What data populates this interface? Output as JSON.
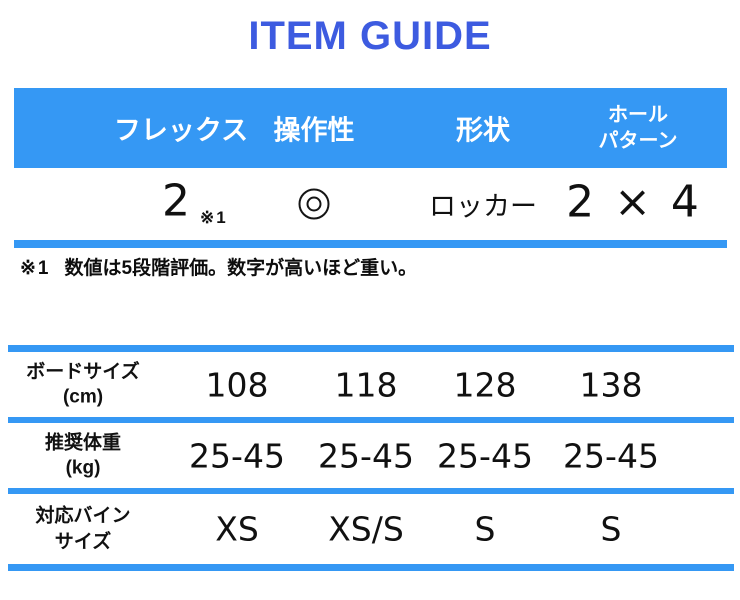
{
  "header": {
    "title": "ITEM GUIDE"
  },
  "colors": {
    "accent_blue": "#3598f4",
    "title_blue": "#3d5be0",
    "text_black": "#111111",
    "header_text_white": "#ffffff"
  },
  "spec": {
    "columns": [
      {
        "label": "フレックス"
      },
      {
        "label": "操作性"
      },
      {
        "label": "形状"
      },
      {
        "label_line1": "ホール",
        "label_line2": "パターン"
      }
    ],
    "values": {
      "flex": "2",
      "flex_note_ref": "※1",
      "operability_icon": "double-circle",
      "shape": "ロッカー",
      "hole_pattern": "2 × 4"
    }
  },
  "note": {
    "marker": "※1",
    "text": "数値は5段階評価。数字が高いほど重い。"
  },
  "size_table": {
    "rows": [
      {
        "label_line1": "ボードサイズ",
        "label_line2": "(cm)",
        "values": [
          "108",
          "118",
          "128",
          "138"
        ]
      },
      {
        "label_line1": "推奨体重",
        "label_line2": "(kg)",
        "values": [
          "25-45",
          "25-45",
          "25-45",
          "25-45"
        ]
      },
      {
        "label_line1": "対応バイン",
        "label_line2": "サイズ",
        "values": [
          "XS",
          "XS/S",
          "S",
          "S"
        ]
      }
    ]
  }
}
